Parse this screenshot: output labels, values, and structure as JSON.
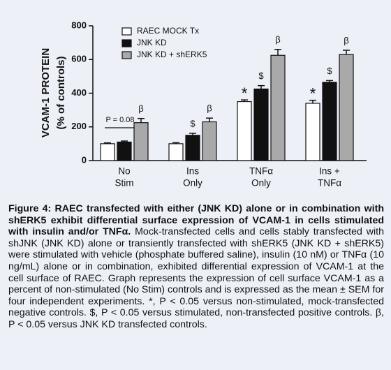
{
  "chart_data": {
    "type": "bar",
    "ylabel": [
      "VCAM-1 PROTEIN",
      "(% of controls)"
    ],
    "categories": [
      [
        "No",
        "Stim"
      ],
      [
        "Ins",
        "Only"
      ],
      [
        "TNFα",
        "Only"
      ],
      [
        "Ins +",
        "TNFα"
      ]
    ],
    "ylim": [
      0,
      800
    ],
    "yticks": [
      0,
      200,
      400,
      600,
      800
    ],
    "series": [
      {
        "name": "RAEC MOCK Tx",
        "color": "#ffffff",
        "values": [
          100,
          100,
          350,
          340
        ],
        "errors": [
          5,
          6,
          10,
          18
        ],
        "annotations": [
          null,
          null,
          "*",
          "*"
        ]
      },
      {
        "name": "JNK KD",
        "color": "#111111",
        "values": [
          110,
          150,
          425,
          465
        ],
        "errors": [
          6,
          12,
          20,
          10
        ],
        "annotations": [
          null,
          "$",
          "$",
          "$"
        ]
      },
      {
        "name": "JNK KD + shERK5",
        "color": "#a9a9a9",
        "values": [
          225,
          230,
          625,
          630
        ],
        "errors": [
          25,
          22,
          35,
          25
        ],
        "annotations": [
          "β",
          "β",
          "β",
          "β"
        ]
      }
    ],
    "pvalue_note": "P = 0.08"
  },
  "caption": {
    "title": "Figure 4: RAEC transfected with either (JNK KD) alone or in combination with shERK5 exhibit differential surface expression of VCAM-1 in cells stimulated with insulin and/or TNFα.",
    "text": "Mock-transfected cells and cells stably transfected with shJNK (JNK KD) alone or transiently transfected with shERK5 (JNK KD + shERK5) were stimulated with vehicle (phosphate buffered saline), insulin (10 nM) or TNFα (10 ng/mL) alone or in combination, exhibited differential expression of VCAM-1 at the cell surface of RAEC. Graph represents the expression of cell surface VCAM-1 as a percent of non-stimulated (No Stim) controls and is expressed as the mean ± SEM for four independent experiments. *, P < 0.05 versus non-stimulated, mock-transfected negative controls. $, P < 0.05 versus stimulated, non-transfected positive controls. β, P < 0.05 versus JNK KD transfected controls."
  }
}
